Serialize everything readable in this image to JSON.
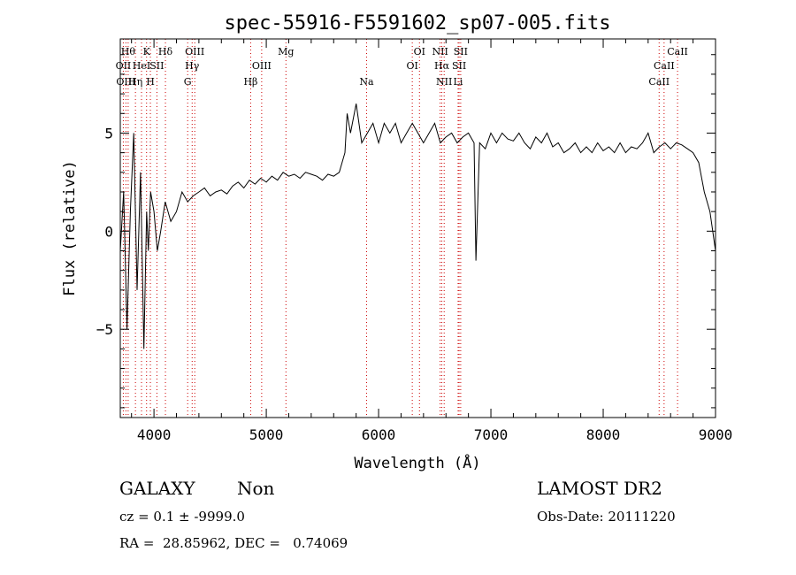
{
  "chart_data": {
    "type": "line",
    "title": "spec-55916-F5591602_sp07-005.fits",
    "xlabel": "Wavelength (Å)",
    "ylabel": "Flux (relative)",
    "xlim": [
      3700,
      9000
    ],
    "ylim": [
      -9.5,
      9.8
    ],
    "x_ticks": [
      4000,
      5000,
      6000,
      7000,
      8000,
      9000
    ],
    "y_ticks": [
      -5,
      0,
      5
    ],
    "grid": false,
    "line_color": "#000000",
    "marker_line_color": "#cc0000",
    "series": [
      {
        "x": [
          3700,
          3730,
          3760,
          3790,
          3820,
          3850,
          3880,
          3910,
          3935,
          3950,
          3970,
          4000,
          4030,
          4060,
          4100,
          4150,
          4200,
          4250,
          4300,
          4350,
          4400,
          4450,
          4500,
          4550,
          4600,
          4650,
          4700,
          4750,
          4800,
          4850,
          4900,
          4950,
          5000,
          5050,
          5100,
          5150,
          5200,
          5250,
          5300,
          5350,
          5400,
          5450,
          5500,
          5550,
          5600,
          5650,
          5700,
          5720,
          5750,
          5800,
          5850,
          5900,
          5950,
          6000,
          6050,
          6100,
          6150,
          6200,
          6250,
          6300,
          6350,
          6400,
          6450,
          6500,
          6550,
          6600,
          6650,
          6700,
          6750,
          6800,
          6850,
          6867,
          6900,
          6950,
          7000,
          7050,
          7100,
          7150,
          7200,
          7250,
          7300,
          7350,
          7400,
          7450,
          7500,
          7550,
          7600,
          7650,
          7700,
          7750,
          7800,
          7850,
          7900,
          7950,
          8000,
          8050,
          8100,
          8150,
          8200,
          8250,
          8300,
          8350,
          8400,
          8450,
          8500,
          8550,
          8600,
          8650,
          8700,
          8750,
          8800,
          8850,
          8900,
          8950,
          9000
        ],
        "y": [
          -1,
          2,
          -5,
          1,
          5,
          -3,
          3,
          -6,
          1,
          -1,
          2,
          1,
          -1,
          0,
          1.5,
          0.5,
          1,
          2,
          1.5,
          1.8,
          2,
          2.2,
          1.8,
          2,
          2.1,
          1.9,
          2.3,
          2.5,
          2.2,
          2.6,
          2.4,
          2.7,
          2.5,
          2.8,
          2.6,
          3,
          2.8,
          2.9,
          2.7,
          3,
          2.9,
          2.8,
          2.6,
          2.9,
          2.8,
          3,
          4,
          6,
          5,
          6.5,
          4.5,
          5,
          5.5,
          4.5,
          5.5,
          5,
          5.5,
          4.5,
          5,
          5.5,
          5,
          4.5,
          5,
          5.5,
          4.5,
          4.8,
          5,
          4.5,
          4.8,
          5,
          4.5,
          -1.5,
          4.5,
          4.2,
          5,
          4.5,
          5,
          4.7,
          4.6,
          5,
          4.5,
          4.2,
          4.8,
          4.5,
          5,
          4.3,
          4.5,
          4,
          4.2,
          4.5,
          4,
          4.3,
          4,
          4.5,
          4.1,
          4.3,
          4,
          4.5,
          4,
          4.3,
          4.2,
          4.5,
          5,
          4,
          4.3,
          4.5,
          4.2,
          4.5,
          4.4,
          4.2,
          4,
          3.5,
          2,
          1,
          -1
        ]
      }
    ],
    "line_markers": [
      {
        "wavelength": 3727,
        "label": "OII",
        "row": 2
      },
      {
        "wavelength": 3750,
        "label": "OIII",
        "row": 3
      },
      {
        "wavelength": 3770,
        "label": "Hθ",
        "row": 1
      },
      {
        "wavelength": 3835,
        "label": "Hη",
        "row": 3
      },
      {
        "wavelength": 3889,
        "label": "HeI",
        "row": 2
      },
      {
        "wavelength": 3934,
        "label": "K",
        "row": 1
      },
      {
        "wavelength": 3968,
        "label": "H",
        "row": 3
      },
      {
        "wavelength": 4026,
        "label": "SII",
        "row": 2
      },
      {
        "wavelength": 4102,
        "label": "Hδ",
        "row": 1
      },
      {
        "wavelength": 4300,
        "label": "G",
        "row": 3
      },
      {
        "wavelength": 4340,
        "label": "Hγ",
        "row": 2
      },
      {
        "wavelength": 4363,
        "label": "OIII",
        "row": 1
      },
      {
        "wavelength": 4861,
        "label": "Hβ",
        "row": 3
      },
      {
        "wavelength": 4959,
        "label": "OIII",
        "row": 2
      },
      {
        "wavelength": 5175,
        "label": "Mg",
        "row": 1
      },
      {
        "wavelength": 5893,
        "label": "Na",
        "row": 3
      },
      {
        "wavelength": 6300,
        "label": "OI",
        "row": 2
      },
      {
        "wavelength": 6364,
        "label": "OI",
        "row": 1
      },
      {
        "wavelength": 6548,
        "label": "NII",
        "row": 1
      },
      {
        "wavelength": 6563,
        "label": "Hα",
        "row": 2
      },
      {
        "wavelength": 6584,
        "label": "NII",
        "row": 3
      },
      {
        "wavelength": 6708,
        "label": "Li",
        "row": 3
      },
      {
        "wavelength": 6717,
        "label": "SII",
        "row": 2
      },
      {
        "wavelength": 6731,
        "label": "SII",
        "row": 1
      },
      {
        "wavelength": 8498,
        "label": "CaII",
        "row": 3
      },
      {
        "wavelength": 8542,
        "label": "CaII",
        "row": 2
      },
      {
        "wavelength": 8662,
        "label": "CaII",
        "row": 1
      }
    ]
  },
  "info": {
    "class": "GALAXY",
    "subclass": "Non",
    "survey": "LAMOST DR2",
    "cz": "cz = 0.1 ± -9999.0",
    "obs_date": "Obs-Date: 20111220",
    "coords": "RA =  28.85962, DEC =   0.74069"
  }
}
